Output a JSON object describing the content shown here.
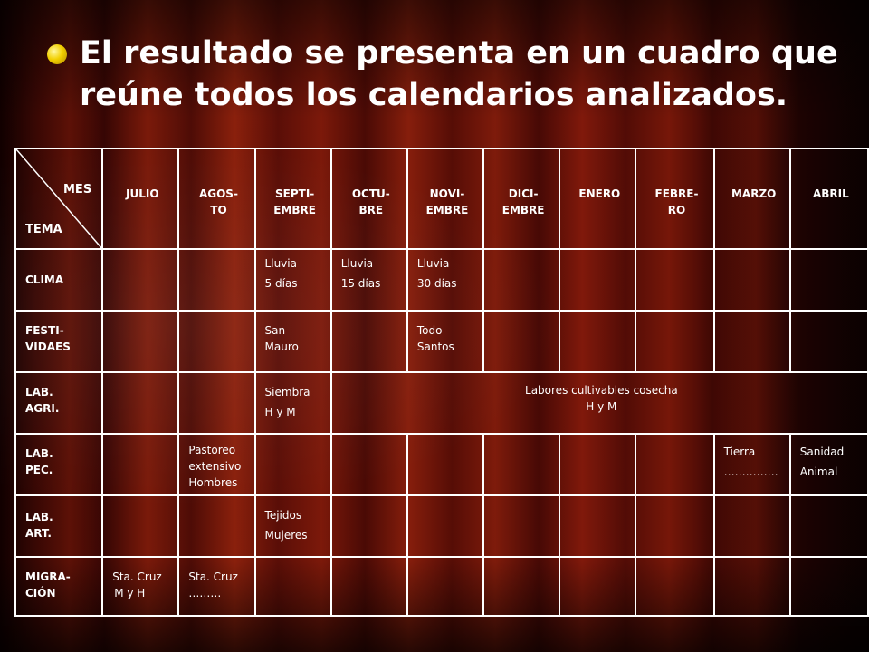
{
  "title": "El resultado se presenta en un cuadro que reúne todos los calendarios analizados.",
  "table": {
    "corner_top": "MES",
    "corner_bottom": "TEMA",
    "months": [
      "JULIO",
      "AGOS-\nTO",
      "SEPTI-\nEMBRE",
      "OCTU-\nBRE",
      "NOVI-\nEMBRE",
      "DICI-\nEMBRE",
      "ENERO",
      "FEBRE-\nRO",
      "MARZO",
      "ABRIL"
    ],
    "rows": {
      "clima": {
        "label": "CLIMA",
        "sep": [
          "Lluvia",
          "5 días"
        ],
        "oct": [
          "Lluvia",
          "15 días"
        ],
        "nov": [
          "Lluvia",
          "30 días"
        ]
      },
      "festividades": {
        "label": "FESTI-\nVIDAES",
        "sep": "San\nMauro",
        "nov": "Todo\nSantos"
      },
      "lab_agri": {
        "label": "LAB.\nAGRI.",
        "sep": [
          "Siembra",
          "H y M"
        ],
        "span": [
          "Labores cultivables cosecha",
          "H y M"
        ]
      },
      "lab_pec": {
        "label": "LAB.\nPEC.",
        "ago": "Pastoreo\nextensivo\nHombres",
        "mar": [
          "Tierra",
          "……………"
        ],
        "abr": [
          "Sanidad",
          "Animal"
        ]
      },
      "lab_art": {
        "label": "LAB.\nART.",
        "sep": [
          "Tejidos",
          "Mujeres"
        ]
      },
      "migracion": {
        "label": "MIGRA-\nCIÓN",
        "jul": [
          "Sta. Cruz",
          "M y H"
        ],
        "ago": [
          "Sta. Cruz",
          "………"
        ]
      }
    }
  }
}
